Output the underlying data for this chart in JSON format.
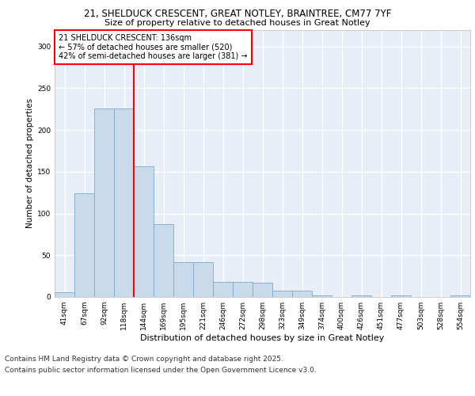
{
  "title_line1": "21, SHELDUCK CRESCENT, GREAT NOTLEY, BRAINTREE, CM77 7YF",
  "title_line2": "Size of property relative to detached houses in Great Notley",
  "xlabel": "Distribution of detached houses by size in Great Notley",
  "ylabel": "Number of detached properties",
  "bar_labels": [
    "41sqm",
    "67sqm",
    "92sqm",
    "118sqm",
    "144sqm",
    "169sqm",
    "195sqm",
    "221sqm",
    "246sqm",
    "272sqm",
    "298sqm",
    "323sqm",
    "349sqm",
    "374sqm",
    "400sqm",
    "426sqm",
    "451sqm",
    "477sqm",
    "503sqm",
    "528sqm",
    "554sqm"
  ],
  "bar_values": [
    6,
    124,
    226,
    226,
    156,
    87,
    42,
    42,
    18,
    18,
    17,
    8,
    8,
    2,
    0,
    2,
    0,
    2,
    0,
    0,
    2
  ],
  "bar_color": "#c9daea",
  "bar_edgecolor": "#7aaac8",
  "fig_facecolor": "#ffffff",
  "ax_facecolor": "#e8eef8",
  "grid_color": "#ffffff",
  "vline_x": 3.5,
  "vline_color": "red",
  "annotation_text": "21 SHELDUCK CRESCENT: 136sqm\n← 57% of detached houses are smaller (520)\n42% of semi-detached houses are larger (381) →",
  "annotation_box_color": "red",
  "ylim": [
    0,
    320
  ],
  "yticks": [
    0,
    50,
    100,
    150,
    200,
    250,
    300
  ],
  "footer_line1": "Contains HM Land Registry data © Crown copyright and database right 2025.",
  "footer_line2": "Contains public sector information licensed under the Open Government Licence v3.0.",
  "footer_fontsize": 6.5,
  "title1_fontsize": 8.5,
  "title2_fontsize": 8.0,
  "xlabel_fontsize": 8.0,
  "ylabel_fontsize": 7.5,
  "tick_fontsize": 6.5,
  "annot_fontsize": 7.0
}
